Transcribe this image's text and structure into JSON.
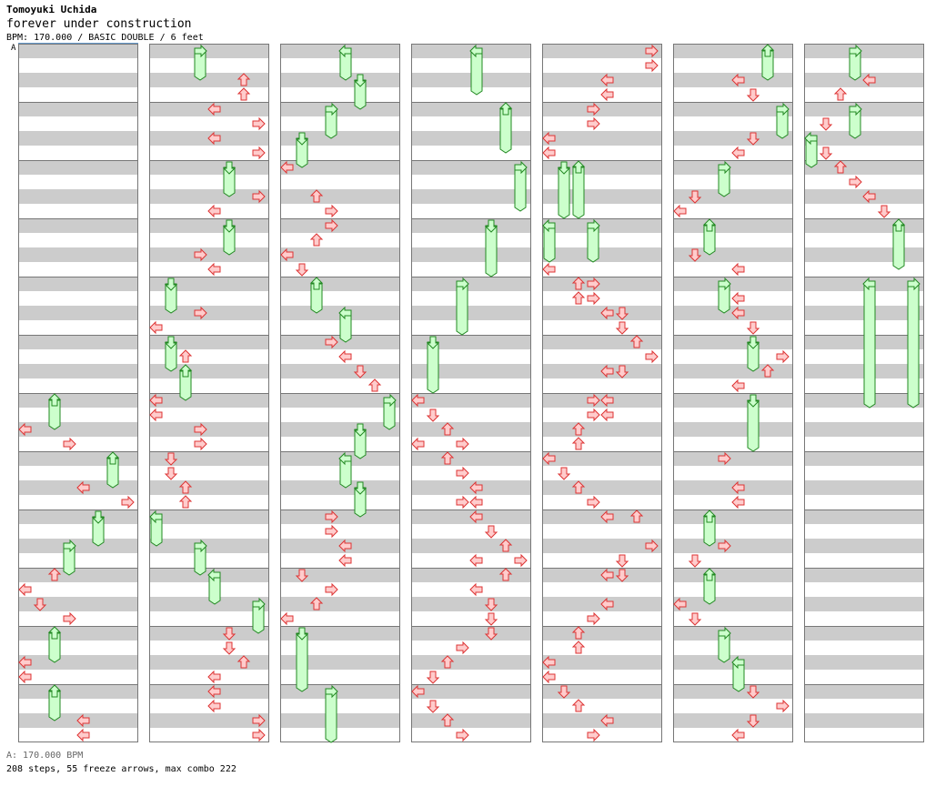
{
  "header": {
    "artist": "Tomoyuki Uchida",
    "title": "forever under construction",
    "meta": "BPM: 170.000 / BASIC DOUBLE / 6 feet"
  },
  "marker_label": "A",
  "footer": {
    "bpm": "A: 170.000 BPM",
    "stats": "208 steps, 55 freeze arrows, max combo 222"
  },
  "colors": {
    "stripe": "#cccccc",
    "border": "#777777",
    "arrow_fill": "#ffcccc",
    "arrow_stroke": "#dd3333",
    "freeze_fill": "#ccffcc",
    "freeze_stroke": "#228822",
    "marker_line": "#6699cc"
  },
  "chart_data": {
    "type": "step-chart",
    "panels": 7,
    "measures_per_panel": 12,
    "lanes": [
      "L1",
      "D1",
      "U1",
      "R1",
      "L2",
      "D2",
      "U2",
      "R2"
    ],
    "steps": [
      {
        "p": 0,
        "m": 6,
        "b": 0.0,
        "l": 2,
        "f": 0.5
      },
      {
        "p": 0,
        "m": 6,
        "b": 0.5,
        "l": 0
      },
      {
        "p": 0,
        "m": 6,
        "b": 0.75,
        "l": 3
      },
      {
        "p": 0,
        "m": 7,
        "b": 0.0,
        "l": 6,
        "f": 0.5
      },
      {
        "p": 0,
        "m": 7,
        "b": 0.5,
        "l": 4
      },
      {
        "p": 0,
        "m": 7,
        "b": 0.75,
        "l": 7
      },
      {
        "p": 0,
        "m": 8,
        "b": 0.0,
        "l": 5,
        "f": 0.5
      },
      {
        "p": 0,
        "m": 8,
        "b": 0.5,
        "l": 3,
        "f": 0.5
      },
      {
        "p": 0,
        "m": 9,
        "b": 0.0,
        "l": 2
      },
      {
        "p": 0,
        "m": 9,
        "b": 0.25,
        "l": 0
      },
      {
        "p": 0,
        "m": 9,
        "b": 0.5,
        "l": 1
      },
      {
        "p": 0,
        "m": 9,
        "b": 0.75,
        "l": 3
      },
      {
        "p": 0,
        "m": 10,
        "b": 0.0,
        "l": 2,
        "f": 0.5
      },
      {
        "p": 0,
        "m": 10,
        "b": 0.5,
        "l": 0
      },
      {
        "p": 0,
        "m": 10,
        "b": 0.75,
        "l": 0
      },
      {
        "p": 0,
        "m": 11,
        "b": 0.0,
        "l": 2,
        "f": 0.5
      },
      {
        "p": 0,
        "m": 11,
        "b": 0.5,
        "l": 4
      },
      {
        "p": 0,
        "m": 11,
        "b": 0.75,
        "l": 4
      },
      {
        "p": 1,
        "m": 0,
        "b": 0.0,
        "l": 3,
        "f": 0.5
      },
      {
        "p": 1,
        "m": 0,
        "b": 0.5,
        "l": 6
      },
      {
        "p": 1,
        "m": 0,
        "b": 0.75,
        "l": 6
      },
      {
        "p": 1,
        "m": 1,
        "b": 0.0,
        "l": 4
      },
      {
        "p": 1,
        "m": 1,
        "b": 0.25,
        "l": 7
      },
      {
        "p": 1,
        "m": 1,
        "b": 0.5,
        "l": 4
      },
      {
        "p": 1,
        "m": 1,
        "b": 0.75,
        "l": 7
      },
      {
        "p": 1,
        "m": 2,
        "b": 0.0,
        "l": 5,
        "f": 0.5
      },
      {
        "p": 1,
        "m": 2,
        "b": 0.5,
        "l": 7
      },
      {
        "p": 1,
        "m": 2,
        "b": 0.75,
        "l": 4
      },
      {
        "p": 1,
        "m": 3,
        "b": 0.0,
        "l": 5,
        "f": 0.5
      },
      {
        "p": 1,
        "m": 3,
        "b": 0.5,
        "l": 3
      },
      {
        "p": 1,
        "m": 3,
        "b": 0.75,
        "l": 4
      },
      {
        "p": 1,
        "m": 4,
        "b": 0.0,
        "l": 1,
        "f": 0.5
      },
      {
        "p": 1,
        "m": 4,
        "b": 0.5,
        "l": 3
      },
      {
        "p": 1,
        "m": 4,
        "b": 0.75,
        "l": 0
      },
      {
        "p": 1,
        "m": 5,
        "b": 0.0,
        "l": 1,
        "f": 0.5
      },
      {
        "p": 1,
        "m": 5,
        "b": 0.25,
        "l": 2
      },
      {
        "p": 1,
        "m": 5,
        "b": 0.5,
        "l": 2,
        "f": 0.5
      },
      {
        "p": 1,
        "m": 6,
        "b": 0.0,
        "l": 0
      },
      {
        "p": 1,
        "m": 6,
        "b": 0.25,
        "l": 0
      },
      {
        "p": 1,
        "m": 6,
        "b": 0.5,
        "l": 3
      },
      {
        "p": 1,
        "m": 6,
        "b": 0.75,
        "l": 3
      },
      {
        "p": 1,
        "m": 7,
        "b": 0.0,
        "l": 1
      },
      {
        "p": 1,
        "m": 7,
        "b": 0.25,
        "l": 1
      },
      {
        "p": 1,
        "m": 7,
        "b": 0.5,
        "l": 2
      },
      {
        "p": 1,
        "m": 7,
        "b": 0.75,
        "l": 2
      },
      {
        "p": 1,
        "m": 8,
        "b": 0.0,
        "l": 0,
        "f": 0.5
      },
      {
        "p": 1,
        "m": 8,
        "b": 0.5,
        "l": 3,
        "f": 0.5
      },
      {
        "p": 1,
        "m": 9,
        "b": 0.0,
        "l": 4,
        "f": 0.5
      },
      {
        "p": 1,
        "m": 9,
        "b": 0.5,
        "l": 7,
        "f": 0.5
      },
      {
        "p": 1,
        "m": 10,
        "b": 0.0,
        "l": 5
      },
      {
        "p": 1,
        "m": 10,
        "b": 0.25,
        "l": 5
      },
      {
        "p": 1,
        "m": 10,
        "b": 0.5,
        "l": 6
      },
      {
        "p": 1,
        "m": 10,
        "b": 0.75,
        "l": 4
      },
      {
        "p": 1,
        "m": 11,
        "b": 0.0,
        "l": 4
      },
      {
        "p": 1,
        "m": 11,
        "b": 0.25,
        "l": 4
      },
      {
        "p": 1,
        "m": 11,
        "b": 0.5,
        "l": 7
      },
      {
        "p": 1,
        "m": 11,
        "b": 0.75,
        "l": 7
      },
      {
        "p": 2,
        "m": 0,
        "b": 0.0,
        "l": 4,
        "f": 0.5
      },
      {
        "p": 2,
        "m": 0,
        "b": 0.5,
        "l": 5,
        "f": 0.5
      },
      {
        "p": 2,
        "m": 1,
        "b": 0.0,
        "l": 3,
        "f": 0.5
      },
      {
        "p": 2,
        "m": 1,
        "b": 0.5,
        "l": 1,
        "f": 0.5
      },
      {
        "p": 2,
        "m": 2,
        "b": 0.0,
        "l": 0
      },
      {
        "p": 2,
        "m": 2,
        "b": 0.5,
        "l": 2
      },
      {
        "p": 2,
        "m": 2,
        "b": 0.75,
        "l": 3
      },
      {
        "p": 2,
        "m": 3,
        "b": 0.0,
        "l": 3
      },
      {
        "p": 2,
        "m": 3,
        "b": 0.25,
        "l": 2
      },
      {
        "p": 2,
        "m": 3,
        "b": 0.5,
        "l": 0
      },
      {
        "p": 2,
        "m": 3,
        "b": 0.75,
        "l": 1
      },
      {
        "p": 2,
        "m": 4,
        "b": 0.0,
        "l": 2,
        "f": 0.5
      },
      {
        "p": 2,
        "m": 4,
        "b": 0.5,
        "l": 4,
        "f": 0.5
      },
      {
        "p": 2,
        "m": 5,
        "b": 0.0,
        "l": 3
      },
      {
        "p": 2,
        "m": 5,
        "b": 0.25,
        "l": 4
      },
      {
        "p": 2,
        "m": 5,
        "b": 0.5,
        "l": 5
      },
      {
        "p": 2,
        "m": 5,
        "b": 0.75,
        "l": 6
      },
      {
        "p": 2,
        "m": 6,
        "b": 0.0,
        "l": 7,
        "f": 0.5
      },
      {
        "p": 2,
        "m": 6,
        "b": 0.5,
        "l": 5,
        "f": 0.5
      },
      {
        "p": 2,
        "m": 7,
        "b": 0.0,
        "l": 4,
        "f": 0.5
      },
      {
        "p": 2,
        "m": 7,
        "b": 0.5,
        "l": 5,
        "f": 0.5
      },
      {
        "p": 2,
        "m": 8,
        "b": 0.0,
        "l": 3
      },
      {
        "p": 2,
        "m": 8,
        "b": 0.25,
        "l": 3
      },
      {
        "p": 2,
        "m": 8,
        "b": 0.5,
        "l": 4
      },
      {
        "p": 2,
        "m": 8,
        "b": 0.75,
        "l": 4
      },
      {
        "p": 2,
        "m": 9,
        "b": 0.0,
        "l": 1
      },
      {
        "p": 2,
        "m": 9,
        "b": 0.25,
        "l": 3
      },
      {
        "p": 2,
        "m": 9,
        "b": 0.5,
        "l": 2
      },
      {
        "p": 2,
        "m": 9,
        "b": 0.75,
        "l": 0
      },
      {
        "p": 2,
        "m": 10,
        "b": 0.0,
        "l": 1,
        "f": 1.0
      },
      {
        "p": 2,
        "m": 11,
        "b": 0.0,
        "l": 3,
        "f": 0.875
      },
      {
        "p": 3,
        "m": 0,
        "b": 0.0,
        "l": 4,
        "f": 0.75
      },
      {
        "p": 3,
        "m": 1,
        "b": 0.0,
        "l": 6,
        "f": 0.75
      },
      {
        "p": 3,
        "m": 2,
        "b": 0.0,
        "l": 7,
        "f": 0.75
      },
      {
        "p": 3,
        "m": 3,
        "b": 0.0,
        "l": 5,
        "f": 0.875
      },
      {
        "p": 3,
        "m": 4,
        "b": 0.0,
        "l": 3,
        "f": 0.875
      },
      {
        "p": 3,
        "m": 5,
        "b": 0.0,
        "l": 1,
        "f": 0.875
      },
      {
        "p": 3,
        "m": 6,
        "b": 0.0,
        "l": 0
      },
      {
        "p": 3,
        "m": 6,
        "b": 0.25,
        "l": 1
      },
      {
        "p": 3,
        "m": 6,
        "b": 0.5,
        "l": 2
      },
      {
        "p": 3,
        "m": 6,
        "b": 0.75,
        "l": 3
      },
      {
        "p": 3,
        "m": 6,
        "b": 0.75,
        "l": 0
      },
      {
        "p": 3,
        "m": 7,
        "b": 0.0,
        "l": 2
      },
      {
        "p": 3,
        "m": 7,
        "b": 0.25,
        "l": 3
      },
      {
        "p": 3,
        "m": 7,
        "b": 0.5,
        "l": 4
      },
      {
        "p": 3,
        "m": 7,
        "b": 0.75,
        "l": 3
      },
      {
        "p": 3,
        "m": 7,
        "b": 0.75,
        "l": 4
      },
      {
        "p": 3,
        "m": 8,
        "b": 0.0,
        "l": 4
      },
      {
        "p": 3,
        "m": 8,
        "b": 0.25,
        "l": 5
      },
      {
        "p": 3,
        "m": 8,
        "b": 0.5,
        "l": 6
      },
      {
        "p": 3,
        "m": 8,
        "b": 0.75,
        "l": 7
      },
      {
        "p": 3,
        "m": 8,
        "b": 0.75,
        "l": 4
      },
      {
        "p": 3,
        "m": 9,
        "b": 0.0,
        "l": 6
      },
      {
        "p": 3,
        "m": 9,
        "b": 0.25,
        "l": 4
      },
      {
        "p": 3,
        "m": 9,
        "b": 0.5,
        "l": 5
      },
      {
        "p": 3,
        "m": 9,
        "b": 0.75,
        "l": 5
      },
      {
        "p": 3,
        "m": 10,
        "b": 0.0,
        "l": 5
      },
      {
        "p": 3,
        "m": 10,
        "b": 0.25,
        "l": 3
      },
      {
        "p": 3,
        "m": 10,
        "b": 0.5,
        "l": 2
      },
      {
        "p": 3,
        "m": 10,
        "b": 0.75,
        "l": 1
      },
      {
        "p": 3,
        "m": 11,
        "b": 0.0,
        "l": 0
      },
      {
        "p": 3,
        "m": 11,
        "b": 0.25,
        "l": 1
      },
      {
        "p": 3,
        "m": 11,
        "b": 0.5,
        "l": 2
      },
      {
        "p": 3,
        "m": 11,
        "b": 0.75,
        "l": 3
      },
      {
        "p": 4,
        "m": 0,
        "b": 0.0,
        "l": 7
      },
      {
        "p": 4,
        "m": 0,
        "b": 0.25,
        "l": 7
      },
      {
        "p": 4,
        "m": 0,
        "b": 0.5,
        "l": 4
      },
      {
        "p": 4,
        "m": 0,
        "b": 0.75,
        "l": 4
      },
      {
        "p": 4,
        "m": 1,
        "b": 0.0,
        "l": 3
      },
      {
        "p": 4,
        "m": 1,
        "b": 0.25,
        "l": 3
      },
      {
        "p": 4,
        "m": 1,
        "b": 0.5,
        "l": 0
      },
      {
        "p": 4,
        "m": 1,
        "b": 0.75,
        "l": 0
      },
      {
        "p": 4,
        "m": 2,
        "b": 0.0,
        "l": 1,
        "f": 0.875
      },
      {
        "p": 4,
        "m": 2,
        "b": 0.0,
        "l": 2,
        "f": 0.875
      },
      {
        "p": 4,
        "m": 3,
        "b": 0.0,
        "l": 0,
        "f": 0.625
      },
      {
        "p": 4,
        "m": 3,
        "b": 0.0,
        "l": 3,
        "f": 0.625
      },
      {
        "p": 4,
        "m": 3,
        "b": 0.75,
        "l": 0
      },
      {
        "p": 4,
        "m": 4,
        "b": 0.0,
        "l": 2
      },
      {
        "p": 4,
        "m": 4,
        "b": 0.0,
        "l": 3
      },
      {
        "p": 4,
        "m": 4,
        "b": 0.25,
        "l": 2
      },
      {
        "p": 4,
        "m": 4,
        "b": 0.25,
        "l": 3
      },
      {
        "p": 4,
        "m": 4,
        "b": 0.5,
        "l": 4
      },
      {
        "p": 4,
        "m": 4,
        "b": 0.5,
        "l": 5
      },
      {
        "p": 4,
        "m": 4,
        "b": 0.75,
        "l": 5
      },
      {
        "p": 4,
        "m": 5,
        "b": 0.0,
        "l": 6
      },
      {
        "p": 4,
        "m": 5,
        "b": 0.25,
        "l": 7
      },
      {
        "p": 4,
        "m": 5,
        "b": 0.5,
        "l": 4
      },
      {
        "p": 4,
        "m": 5,
        "b": 0.5,
        "l": 5
      },
      {
        "p": 4,
        "m": 6,
        "b": 0.0,
        "l": 3
      },
      {
        "p": 4,
        "m": 6,
        "b": 0.0,
        "l": 4
      },
      {
        "p": 4,
        "m": 6,
        "b": 0.25,
        "l": 3
      },
      {
        "p": 4,
        "m": 6,
        "b": 0.25,
        "l": 4
      },
      {
        "p": 4,
        "m": 6,
        "b": 0.5,
        "l": 2
      },
      {
        "p": 4,
        "m": 6,
        "b": 0.75,
        "l": 2
      },
      {
        "p": 4,
        "m": 7,
        "b": 0.0,
        "l": 0
      },
      {
        "p": 4,
        "m": 7,
        "b": 0.25,
        "l": 1
      },
      {
        "p": 4,
        "m": 7,
        "b": 0.5,
        "l": 2
      },
      {
        "p": 4,
        "m": 7,
        "b": 0.75,
        "l": 3
      },
      {
        "p": 4,
        "m": 8,
        "b": 0.0,
        "l": 4
      },
      {
        "p": 4,
        "m": 8,
        "b": 0.0,
        "l": 6
      },
      {
        "p": 4,
        "m": 8,
        "b": 0.5,
        "l": 7
      },
      {
        "p": 4,
        "m": 8,
        "b": 0.75,
        "l": 5
      },
      {
        "p": 4,
        "m": 9,
        "b": 0.0,
        "l": 4
      },
      {
        "p": 4,
        "m": 9,
        "b": 0.0,
        "l": 5
      },
      {
        "p": 4,
        "m": 9,
        "b": 0.5,
        "l": 4
      },
      {
        "p": 4,
        "m": 9,
        "b": 0.75,
        "l": 3
      },
      {
        "p": 4,
        "m": 10,
        "b": 0.0,
        "l": 2
      },
      {
        "p": 4,
        "m": 10,
        "b": 0.25,
        "l": 2
      },
      {
        "p": 4,
        "m": 10,
        "b": 0.5,
        "l": 0
      },
      {
        "p": 4,
        "m": 10,
        "b": 0.75,
        "l": 0
      },
      {
        "p": 4,
        "m": 11,
        "b": 0.0,
        "l": 1
      },
      {
        "p": 4,
        "m": 11,
        "b": 0.25,
        "l": 2
      },
      {
        "p": 4,
        "m": 11,
        "b": 0.5,
        "l": 4
      },
      {
        "p": 4,
        "m": 11,
        "b": 0.75,
        "l": 3
      },
      {
        "p": 5,
        "m": 0,
        "b": 0.0,
        "l": 6,
        "f": 0.5
      },
      {
        "p": 5,
        "m": 0,
        "b": 0.5,
        "l": 4
      },
      {
        "p": 5,
        "m": 0,
        "b": 0.75,
        "l": 5
      },
      {
        "p": 5,
        "m": 1,
        "b": 0.0,
        "l": 7,
        "f": 0.5
      },
      {
        "p": 5,
        "m": 1,
        "b": 0.5,
        "l": 5
      },
      {
        "p": 5,
        "m": 1,
        "b": 0.75,
        "l": 4
      },
      {
        "p": 5,
        "m": 2,
        "b": 0.0,
        "l": 3,
        "f": 0.5
      },
      {
        "p": 5,
        "m": 2,
        "b": 0.5,
        "l": 1
      },
      {
        "p": 5,
        "m": 2,
        "b": 0.75,
        "l": 0
      },
      {
        "p": 5,
        "m": 3,
        "b": 0.0,
        "l": 2,
        "f": 0.5
      },
      {
        "p": 5,
        "m": 3,
        "b": 0.5,
        "l": 1
      },
      {
        "p": 5,
        "m": 3,
        "b": 0.75,
        "l": 4
      },
      {
        "p": 5,
        "m": 4,
        "b": 0.0,
        "l": 3,
        "f": 0.5
      },
      {
        "p": 5,
        "m": 4,
        "b": 0.25,
        "l": 4
      },
      {
        "p": 5,
        "m": 4,
        "b": 0.5,
        "l": 4
      },
      {
        "p": 5,
        "m": 4,
        "b": 0.75,
        "l": 5
      },
      {
        "p": 5,
        "m": 5,
        "b": 0.0,
        "l": 5,
        "f": 0.5
      },
      {
        "p": 5,
        "m": 5,
        "b": 0.25,
        "l": 7
      },
      {
        "p": 5,
        "m": 5,
        "b": 0.5,
        "l": 6
      },
      {
        "p": 5,
        "m": 5,
        "b": 0.75,
        "l": 4
      },
      {
        "p": 5,
        "m": 6,
        "b": 0.0,
        "l": 5,
        "f": 0.875
      },
      {
        "p": 5,
        "m": 7,
        "b": 0.0,
        "l": 3
      },
      {
        "p": 5,
        "m": 7,
        "b": 0.5,
        "l": 4
      },
      {
        "p": 5,
        "m": 7,
        "b": 0.75,
        "l": 4
      },
      {
        "p": 5,
        "m": 8,
        "b": 0.0,
        "l": 2,
        "f": 0.5
      },
      {
        "p": 5,
        "m": 8,
        "b": 0.5,
        "l": 3
      },
      {
        "p": 5,
        "m": 8,
        "b": 0.75,
        "l": 1
      },
      {
        "p": 5,
        "m": 9,
        "b": 0.0,
        "l": 2,
        "f": 0.5
      },
      {
        "p": 5,
        "m": 9,
        "b": 0.5,
        "l": 0
      },
      {
        "p": 5,
        "m": 9,
        "b": 0.75,
        "l": 1
      },
      {
        "p": 5,
        "m": 10,
        "b": 0.0,
        "l": 3,
        "f": 0.5
      },
      {
        "p": 5,
        "m": 10,
        "b": 0.5,
        "l": 4,
        "f": 0.5
      },
      {
        "p": 5,
        "m": 11,
        "b": 0.0,
        "l": 5
      },
      {
        "p": 5,
        "m": 11,
        "b": 0.25,
        "l": 7
      },
      {
        "p": 5,
        "m": 11,
        "b": 0.5,
        "l": 5
      },
      {
        "p": 5,
        "m": 11,
        "b": 0.75,
        "l": 4
      },
      {
        "p": 6,
        "m": 0,
        "b": 0.0,
        "l": 3,
        "f": 0.5
      },
      {
        "p": 6,
        "m": 0,
        "b": 0.5,
        "l": 4
      },
      {
        "p": 6,
        "m": 0,
        "b": 0.75,
        "l": 2
      },
      {
        "p": 6,
        "m": 1,
        "b": 0.0,
        "l": 3,
        "f": 0.5
      },
      {
        "p": 6,
        "m": 1,
        "b": 0.25,
        "l": 1
      },
      {
        "p": 6,
        "m": 1,
        "b": 0.5,
        "l": 0,
        "f": 0.5
      },
      {
        "p": 6,
        "m": 1,
        "b": 0.75,
        "l": 1
      },
      {
        "p": 6,
        "m": 2,
        "b": 0.0,
        "l": 2
      },
      {
        "p": 6,
        "m": 2,
        "b": 0.25,
        "l": 3
      },
      {
        "p": 6,
        "m": 2,
        "b": 0.5,
        "l": 4
      },
      {
        "p": 6,
        "m": 2,
        "b": 0.75,
        "l": 5
      },
      {
        "p": 6,
        "m": 3,
        "b": 0.0,
        "l": 6,
        "f": 0.75
      },
      {
        "p": 6,
        "m": 4,
        "b": 0.0,
        "l": 4,
        "f": 2.125
      },
      {
        "p": 6,
        "m": 4,
        "b": 0.0,
        "l": 7,
        "f": 2.125
      }
    ]
  }
}
